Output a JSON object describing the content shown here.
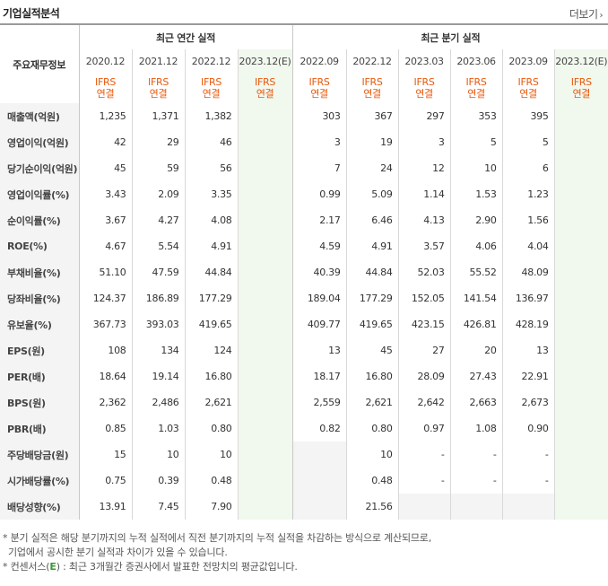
{
  "section": {
    "title": "기업실적분석",
    "more_label": "더보기"
  },
  "table": {
    "key_header": "주요재무정보",
    "annual_group": "최근 연간 실적",
    "quarterly_group": "최근 분기 실적",
    "annual_periods": [
      "2020.12",
      "2021.12",
      "2022.12",
      "2023.12(E)"
    ],
    "quarterly_periods": [
      "2022.09",
      "2022.12",
      "2023.03",
      "2023.06",
      "2023.09",
      "2023.12(E)"
    ],
    "ifrs_line1": "IFRS",
    "ifrs_line2": "연결",
    "rows": [
      {
        "label": "매출액(억원)",
        "annual": [
          "1,235",
          "1,371",
          "1,382",
          ""
        ],
        "quarterly": [
          "303",
          "367",
          "297",
          "353",
          "395",
          ""
        ]
      },
      {
        "label": "영업이익(억원)",
        "annual": [
          "42",
          "29",
          "46",
          ""
        ],
        "quarterly": [
          "3",
          "19",
          "3",
          "5",
          "5",
          ""
        ]
      },
      {
        "label": "당기순이익(억원)",
        "annual": [
          "45",
          "59",
          "56",
          ""
        ],
        "quarterly": [
          "7",
          "24",
          "12",
          "10",
          "6",
          ""
        ]
      },
      {
        "label": "영업이익률(%)",
        "annual": [
          "3.43",
          "2.09",
          "3.35",
          ""
        ],
        "quarterly": [
          "0.99",
          "5.09",
          "1.14",
          "1.53",
          "1.23",
          ""
        ]
      },
      {
        "label": "순이익률(%)",
        "annual": [
          "3.67",
          "4.27",
          "4.08",
          ""
        ],
        "quarterly": [
          "2.17",
          "6.46",
          "4.13",
          "2.90",
          "1.56",
          ""
        ]
      },
      {
        "label": "ROE(%)",
        "annual": [
          "4.67",
          "5.54",
          "4.91",
          ""
        ],
        "quarterly": [
          "4.59",
          "4.91",
          "3.57",
          "4.06",
          "4.04",
          ""
        ]
      },
      {
        "label": "부채비율(%)",
        "annual": [
          "51.10",
          "47.59",
          "44.84",
          ""
        ],
        "quarterly": [
          "40.39",
          "44.84",
          "52.03",
          "55.52",
          "48.09",
          ""
        ]
      },
      {
        "label": "당좌비율(%)",
        "annual": [
          "124.37",
          "186.89",
          "177.29",
          ""
        ],
        "quarterly": [
          "189.04",
          "177.29",
          "152.05",
          "141.54",
          "136.97",
          ""
        ]
      },
      {
        "label": "유보율(%)",
        "annual": [
          "367.73",
          "393.03",
          "419.65",
          ""
        ],
        "quarterly": [
          "409.77",
          "419.65",
          "423.15",
          "426.81",
          "428.19",
          ""
        ]
      },
      {
        "label": "EPS(원)",
        "annual": [
          "108",
          "134",
          "124",
          ""
        ],
        "quarterly": [
          "13",
          "45",
          "27",
          "20",
          "13",
          ""
        ]
      },
      {
        "label": "PER(배)",
        "annual": [
          "18.64",
          "19.14",
          "16.80",
          ""
        ],
        "quarterly": [
          "18.17",
          "16.80",
          "28.09",
          "27.43",
          "22.91",
          ""
        ]
      },
      {
        "label": "BPS(원)",
        "annual": [
          "2,362",
          "2,486",
          "2,621",
          ""
        ],
        "quarterly": [
          "2,559",
          "2,621",
          "2,642",
          "2,663",
          "2,673",
          ""
        ]
      },
      {
        "label": "PBR(배)",
        "annual": [
          "0.85",
          "1.03",
          "0.80",
          ""
        ],
        "quarterly": [
          "0.82",
          "0.80",
          "0.97",
          "1.08",
          "0.90",
          ""
        ]
      },
      {
        "label": "주당배당금(원)",
        "annual": [
          "15",
          "10",
          "10",
          ""
        ],
        "quarterly": [
          "",
          "10",
          "-",
          "-",
          "-",
          ""
        ]
      },
      {
        "label": "시가배당률(%)",
        "annual": [
          "0.75",
          "0.39",
          "0.48",
          ""
        ],
        "quarterly": [
          "",
          "0.48",
          "-",
          "-",
          "-",
          ""
        ]
      },
      {
        "label": "배당성향(%)",
        "annual": [
          "13.91",
          "7.45",
          "7.90",
          ""
        ],
        "quarterly": [
          "",
          "21.56",
          "",
          "",
          "",
          ""
        ]
      }
    ]
  },
  "notes": {
    "line1": "* 분기 실적은 해당 분기까지의 누적 실적에서 직전 분기까지의 누적 실적을 차감하는 방식으로 계산되므로,",
    "line2": "기업에서 공시한 분기 실적과 차이가 있을 수 있습니다.",
    "line3_prefix": "* 컨센서스(",
    "line3_mark": "E",
    "line3_suffix": ") : 최근 3개월간 증권사에서 발표한 전망치의 평균값입니다."
  },
  "colors": {
    "ifrs": "#e8590c",
    "estimate_bg": "#f1f8ee",
    "label_bg": "#f4f4f4",
    "e_mark": "#3a9a34"
  }
}
